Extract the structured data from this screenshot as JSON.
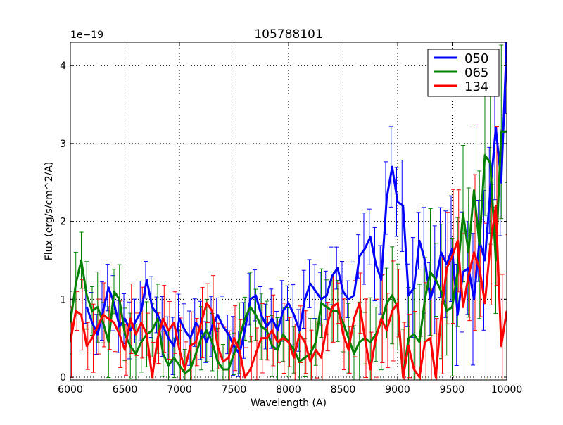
{
  "chart_data": {
    "type": "line",
    "title": "105788101",
    "xlabel": "Wavelength (A)",
    "ylabel": "Flux (erg/s/cm^2/A)",
    "y_offset_text": "1e−19",
    "xlim": [
      6000,
      10000
    ],
    "ylim": [
      -0.036,
      4.3
    ],
    "xticks": [
      6000,
      6500,
      7000,
      7500,
      8000,
      8500,
      9000,
      9500,
      10000
    ],
    "yticks": [
      0,
      1,
      2,
      3,
      4
    ],
    "grid": true,
    "legend_position": "top-right",
    "series": [
      {
        "name": "050",
        "color": "#0000ff",
        "typical_error": 0.3,
        "x": [
          6150,
          6200,
          6250,
          6300,
          6350,
          6400,
          6450,
          6500,
          6550,
          6600,
          6650,
          6700,
          6750,
          6800,
          6850,
          6900,
          6950,
          7000,
          7050,
          7100,
          7150,
          7200,
          7250,
          7300,
          7350,
          7400,
          7450,
          7500,
          7550,
          7600,
          7650,
          7700,
          7750,
          7800,
          7850,
          7900,
          7950,
          8000,
          8050,
          8100,
          8150,
          8200,
          8250,
          8300,
          8350,
          8400,
          8450,
          8500,
          8550,
          8600,
          8650,
          8700,
          8750,
          8800,
          8850,
          8900,
          8950,
          9000,
          9050,
          9100,
          9150,
          9200,
          9250,
          9300,
          9350,
          9400,
          9450,
          9500,
          9550,
          9600,
          9650,
          9700,
          9750,
          9800,
          9850,
          9900,
          9950,
          10000
        ],
        "y": [
          0.9,
          0.7,
          0.55,
          0.85,
          1.15,
          0.95,
          0.65,
          0.75,
          0.6,
          0.72,
          0.85,
          1.25,
          0.9,
          0.8,
          0.65,
          0.5,
          0.4,
          0.75,
          0.6,
          0.5,
          0.7,
          0.6,
          0.45,
          0.65,
          0.8,
          0.65,
          0.55,
          0.4,
          0.3,
          0.6,
          1.0,
          1.05,
          0.8,
          0.65,
          0.75,
          0.6,
          0.85,
          0.95,
          0.8,
          0.6,
          1.0,
          1.2,
          1.1,
          1.0,
          1.05,
          1.3,
          1.4,
          1.1,
          1.0,
          1.05,
          1.55,
          1.65,
          1.8,
          1.45,
          1.25,
          2.3,
          2.7,
          2.25,
          2.2,
          1.05,
          1.15,
          1.75,
          1.5,
          1.0,
          1.25,
          1.6,
          1.45,
          1.65,
          0.8,
          1.35,
          1.4,
          1.0,
          1.75,
          1.5,
          2.4,
          3.2,
          2.5,
          4.3
        ]
      },
      {
        "name": "065",
        "color": "#008000",
        "typical_error": 0.35,
        "x": [
          6000,
          6050,
          6100,
          6150,
          6200,
          6250,
          6300,
          6350,
          6400,
          6450,
          6500,
          6550,
          6600,
          6650,
          6700,
          6750,
          6800,
          6850,
          6900,
          6950,
          7000,
          7050,
          7100,
          7150,
          7200,
          7250,
          7300,
          7350,
          7400,
          7450,
          7500,
          7550,
          7600,
          7650,
          7700,
          7750,
          7800,
          7850,
          7900,
          7950,
          8000,
          8050,
          8100,
          8150,
          8200,
          8250,
          8300,
          8350,
          8400,
          8450,
          8500,
          8550,
          8600,
          8650,
          8700,
          8750,
          8800,
          8850,
          8900,
          8950,
          9000,
          9050,
          9100,
          9150,
          9200,
          9250,
          9300,
          9350,
          9400,
          9450,
          9500,
          9550,
          9600,
          9650,
          9700,
          9750,
          9800,
          9850,
          9900,
          9950,
          10000
        ],
        "y": [
          0.7,
          1.2,
          1.5,
          1.05,
          0.85,
          0.9,
          0.7,
          0.45,
          1.1,
          1.0,
          0.55,
          0.4,
          0.3,
          0.45,
          0.55,
          0.6,
          0.75,
          0.3,
          0.15,
          0.25,
          0.15,
          0.05,
          0.1,
          0.3,
          0.5,
          0.6,
          0.45,
          0.2,
          0.1,
          0.1,
          0.3,
          0.5,
          0.75,
          0.9,
          0.8,
          0.65,
          0.6,
          0.4,
          0.35,
          0.55,
          0.45,
          0.35,
          0.2,
          0.25,
          0.3,
          0.45,
          0.95,
          0.9,
          0.85,
          0.85,
          0.7,
          0.5,
          0.3,
          0.45,
          0.5,
          0.45,
          0.55,
          0.7,
          0.95,
          1.05,
          0.9,
          0.0,
          0.5,
          0.55,
          0.45,
          1.0,
          1.35,
          1.25,
          1.1,
          0.85,
          0.9,
          1.35,
          2.1,
          1.6,
          2.4,
          1.7,
          2.85,
          2.75,
          1.5,
          3.15,
          3.15
        ]
      },
      {
        "name": "134",
        "color": "#ff0000",
        "typical_error": 0.35,
        "x": [
          6000,
          6050,
          6100,
          6150,
          6200,
          6250,
          6300,
          6350,
          6400,
          6450,
          6500,
          6550,
          6600,
          6650,
          6700,
          6750,
          6800,
          6850,
          6900,
          6950,
          7000,
          7050,
          7100,
          7150,
          7200,
          7250,
          7300,
          7350,
          7400,
          7450,
          7500,
          7550,
          7600,
          7650,
          7700,
          7750,
          7800,
          7850,
          7900,
          7950,
          8000,
          8050,
          8100,
          8150,
          8200,
          8250,
          8300,
          8350,
          8400,
          8450,
          8500,
          8550,
          8600,
          8650,
          8700,
          8750,
          8800,
          8850,
          8900,
          8950,
          9000,
          9050,
          9100,
          9150,
          9200,
          9250,
          9300,
          9350,
          9400,
          9450,
          9500,
          9550,
          9600,
          9650,
          9700,
          9750,
          9800,
          9850,
          9900,
          9950,
          10000
        ],
        "y": [
          0.45,
          0.85,
          0.8,
          0.4,
          0.5,
          0.65,
          0.8,
          0.75,
          0.7,
          0.55,
          0.35,
          0.75,
          0.55,
          0.7,
          0.55,
          0.0,
          0.5,
          0.75,
          0.6,
          0.7,
          0.35,
          0.1,
          0.4,
          0.45,
          0.7,
          0.95,
          0.85,
          0.4,
          0.2,
          0.25,
          0.5,
          0.35,
          0.0,
          0.1,
          0.3,
          0.5,
          0.5,
          0.6,
          0.45,
          0.5,
          0.45,
          0.25,
          0.55,
          0.45,
          0.2,
          0.35,
          0.25,
          0.65,
          0.9,
          0.95,
          0.55,
          0.35,
          0.75,
          0.95,
          0.5,
          0.1,
          0.5,
          0.75,
          0.6,
          0.85,
          0.95,
          0.0,
          0.4,
          0.1,
          0.0,
          0.45,
          0.5,
          0.0,
          0.8,
          1.4,
          1.55,
          1.75,
          0.9,
          1.3,
          1.6,
          1.4,
          0.95,
          1.7,
          2.2,
          0.4,
          0.85
        ]
      }
    ]
  }
}
